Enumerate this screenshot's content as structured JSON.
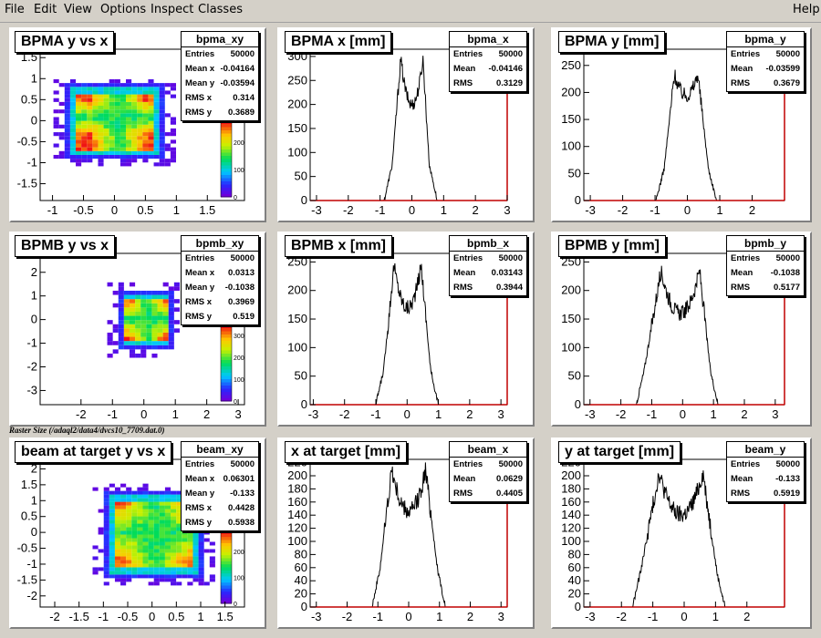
{
  "menu": {
    "items": [
      "File",
      "Edit",
      "View",
      "Options",
      "Inspect",
      "Classes"
    ],
    "help": "Help"
  },
  "caption": "Raster Size (/adaql2/data4/dvcs10_7709.dat.0)",
  "chart_data": [
    {
      "type": "heatmap",
      "title": "BPMA y vs x",
      "stats_name": "bpma_xy",
      "stats": [
        [
          "Entries",
          "50000"
        ],
        [
          "Mean x",
          "-0.04164"
        ],
        [
          "Mean y",
          "-0.03594"
        ],
        [
          "RMS x",
          "0.314"
        ],
        [
          "RMS y",
          "0.3689"
        ]
      ],
      "xlim": [
        -1.2,
        2.1
      ],
      "ylim": [
        -1.9,
        1.7
      ],
      "xticks": [
        -1,
        -0.5,
        0,
        0.5,
        1,
        1.5
      ],
      "yticks": [
        -1.5,
        -1,
        -0.5,
        0,
        0.5,
        1,
        1.5
      ],
      "palette_ticks": [
        0,
        100,
        200
      ],
      "palette_max": 280,
      "raster": {
        "x": [
          -0.85,
          0.78
        ],
        "y": [
          -0.95,
          0.83
        ],
        "core_x": [
          -0.45,
          0.48
        ],
        "core_y": [
          -0.38,
          0.45
        ]
      }
    },
    {
      "type": "area",
      "title": "BPMA x [mm]",
      "stats_name": "bpma_x",
      "stats": [
        [
          "Entries",
          "50000"
        ],
        [
          "Mean",
          "-0.04146"
        ],
        [
          "RMS",
          "0.3129"
        ]
      ],
      "xlim": [
        -3.2,
        3
      ],
      "ylim": [
        0,
        315
      ],
      "xticks": [
        -3,
        -2,
        -1,
        0,
        1,
        2,
        3
      ],
      "yticks": [
        0,
        50,
        100,
        150,
        200,
        250,
        300
      ],
      "profile": {
        "left_edge": -0.62,
        "right_edge": 0.55,
        "left_peak": -0.35,
        "right_peak": 0.35,
        "peak": 295,
        "dip": 200
      }
    },
    {
      "type": "area",
      "title": "BPMA y [mm]",
      "stats_name": "bpma_y",
      "stats": [
        [
          "Entries",
          "50000"
        ],
        [
          "Mean",
          "-0.03599"
        ],
        [
          "RMS",
          "0.3679"
        ]
      ],
      "xlim": [
        -3.2,
        3
      ],
      "ylim": [
        0,
        280
      ],
      "xticks": [
        -3,
        -2,
        -1,
        0,
        1,
        2
      ],
      "yticks": [
        0,
        50,
        100,
        150,
        200,
        250
      ],
      "profile": {
        "left_edge": -0.72,
        "right_edge": 0.65,
        "left_peak": -0.4,
        "right_peak": 0.32,
        "peak": 235,
        "dip": 195
      }
    },
    {
      "type": "heatmap",
      "title": "BPMB y vs x",
      "stats_name": "bpmb_xy",
      "stats": [
        [
          "Entries",
          "50000"
        ],
        [
          "Mean x",
          "0.0313"
        ],
        [
          "Mean y",
          "-0.1038"
        ],
        [
          "RMS x",
          "0.3969"
        ],
        [
          "RMS y",
          "0.519"
        ]
      ],
      "xlim": [
        -3.3,
        3.2
      ],
      "ylim": [
        -3.6,
        2.8
      ],
      "xticks": [
        -2,
        -1,
        0,
        1,
        2,
        3
      ],
      "yticks": [
        -3,
        -2,
        -1,
        0,
        1,
        2
      ],
      "palette_ticks": [
        0,
        100,
        200,
        300
      ],
      "palette_max": 350,
      "raster": {
        "x": [
          -0.9,
          0.85
        ],
        "y": [
          -1.35,
          1.15
        ],
        "core_x": [
          -0.55,
          0.55
        ],
        "core_y": [
          -0.85,
          0.7
        ]
      }
    },
    {
      "type": "area",
      "title": "BPMB x [mm]",
      "stats_name": "bpmb_x",
      "stats": [
        [
          "Entries",
          "50000"
        ],
        [
          "Mean",
          "0.03143"
        ],
        [
          "RMS",
          "0.3944"
        ]
      ],
      "xlim": [
        -3.1,
        3.2
      ],
      "ylim": [
        0,
        265
      ],
      "xticks": [
        -3,
        -2,
        -1,
        0,
        1,
        2,
        3
      ],
      "yticks": [
        0,
        50,
        100,
        150,
        200,
        250
      ],
      "profile": {
        "left_edge": -0.75,
        "right_edge": 0.75,
        "left_peak": -0.42,
        "right_peak": 0.45,
        "peak": 245,
        "dip": 170
      }
    },
    {
      "type": "area",
      "title": "BPMB y [mm]",
      "stats_name": "bpmb_y",
      "stats": [
        [
          "Entries",
          "50000"
        ],
        [
          "Mean",
          "-0.1038"
        ],
        [
          "RMS",
          "0.5177"
        ]
      ],
      "xlim": [
        -3.2,
        3.3
      ],
      "ylim": [
        0,
        265
      ],
      "xticks": [
        -3,
        -2,
        -1,
        0,
        1,
        2,
        3
      ],
      "yticks": [
        0,
        50,
        100,
        150,
        200,
        250
      ],
      "profile": {
        "left_edge": -1.25,
        "right_edge": 0.9,
        "left_peak": -0.7,
        "right_peak": 0.55,
        "peak": 235,
        "dip": 160
      }
    },
    {
      "type": "heatmap",
      "title": "beam at target y vs x",
      "stats_name": "beam_xy",
      "stats": [
        [
          "Entries",
          "50000"
        ],
        [
          "Mean x",
          "0.06301"
        ],
        [
          "Mean y",
          "-0.133"
        ],
        [
          "RMS x",
          "0.4428"
        ],
        [
          "RMS y",
          "0.5938"
        ]
      ],
      "xlim": [
        -2.3,
        1.9
      ],
      "ylim": [
        -2.35,
        2.3
      ],
      "xticks": [
        -2,
        -1.5,
        -1,
        -0.5,
        0,
        0.5,
        1,
        1.5
      ],
      "yticks": [
        -2,
        -1.5,
        -1,
        -0.5,
        0,
        0.5,
        1,
        1.5,
        2
      ],
      "palette_ticks": [
        0,
        100,
        200
      ],
      "palette_max": 280,
      "raster": {
        "x": [
          -1.05,
          1.05
        ],
        "y": [
          -1.5,
          1.25
        ],
        "core_x": [
          -0.7,
          0.75
        ],
        "core_y": [
          -0.95,
          0.85
        ]
      }
    },
    {
      "type": "area",
      "title": "x at target [mm]",
      "stats_name": "beam_x",
      "stats": [
        [
          "Entries",
          "50000"
        ],
        [
          "Mean",
          "0.0629"
        ],
        [
          "RMS",
          "0.4405"
        ]
      ],
      "xlim": [
        -3.2,
        3.2
      ],
      "ylim": [
        0,
        225
      ],
      "xticks": [
        -3,
        -2,
        -1,
        0,
        1,
        2,
        3
      ],
      "yticks": [
        0,
        20,
        40,
        60,
        80,
        100,
        120,
        140,
        160,
        180,
        200,
        220
      ],
      "profile": {
        "left_edge": -0.95,
        "right_edge": 0.95,
        "left_peak": -0.55,
        "right_peak": 0.55,
        "peak": 210,
        "dip": 145
      }
    },
    {
      "type": "area",
      "title": "y at target [mm]",
      "stats_name": "beam_y",
      "stats": [
        [
          "Entries",
          "50000"
        ],
        [
          "Mean",
          "-0.133"
        ],
        [
          "RMS",
          "0.5919"
        ]
      ],
      "xlim": [
        -3.2,
        3.2
      ],
      "ylim": [
        0,
        225
      ],
      "xticks": [
        -3,
        -2,
        -1,
        0,
        1,
        2
      ],
      "yticks": [
        0,
        20,
        40,
        60,
        80,
        100,
        120,
        140,
        160,
        180,
        200,
        220
      ],
      "profile": {
        "left_edge": -1.4,
        "right_edge": 1.05,
        "left_peak": -0.8,
        "right_peak": 0.6,
        "peak": 205,
        "dip": 140
      }
    }
  ]
}
